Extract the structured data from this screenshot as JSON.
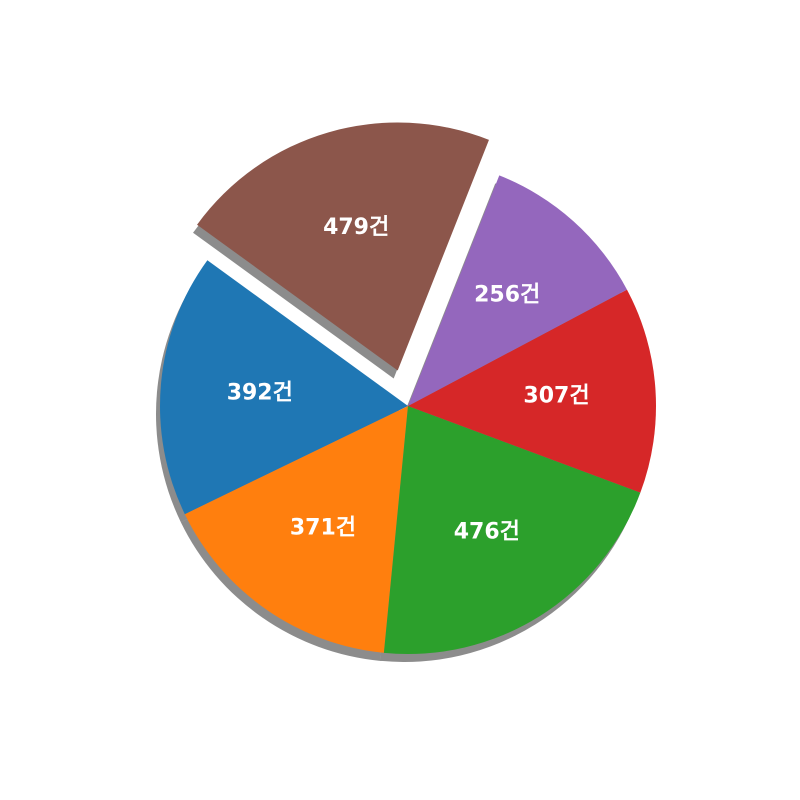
{
  "chart_data": {
    "type": "pie",
    "title": "",
    "values": [
      392,
      371,
      476,
      307,
      256,
      479
    ],
    "labels": [
      "392건",
      "371건",
      "476건",
      "307건",
      "256건",
      "479건"
    ],
    "colors": [
      "#1f77b4",
      "#ff7f0e",
      "#2ca02c",
      "#d62728",
      "#9467bd",
      "#8c564b"
    ],
    "exploded_slice": "479건",
    "shadow": true,
    "legend": "none"
  }
}
